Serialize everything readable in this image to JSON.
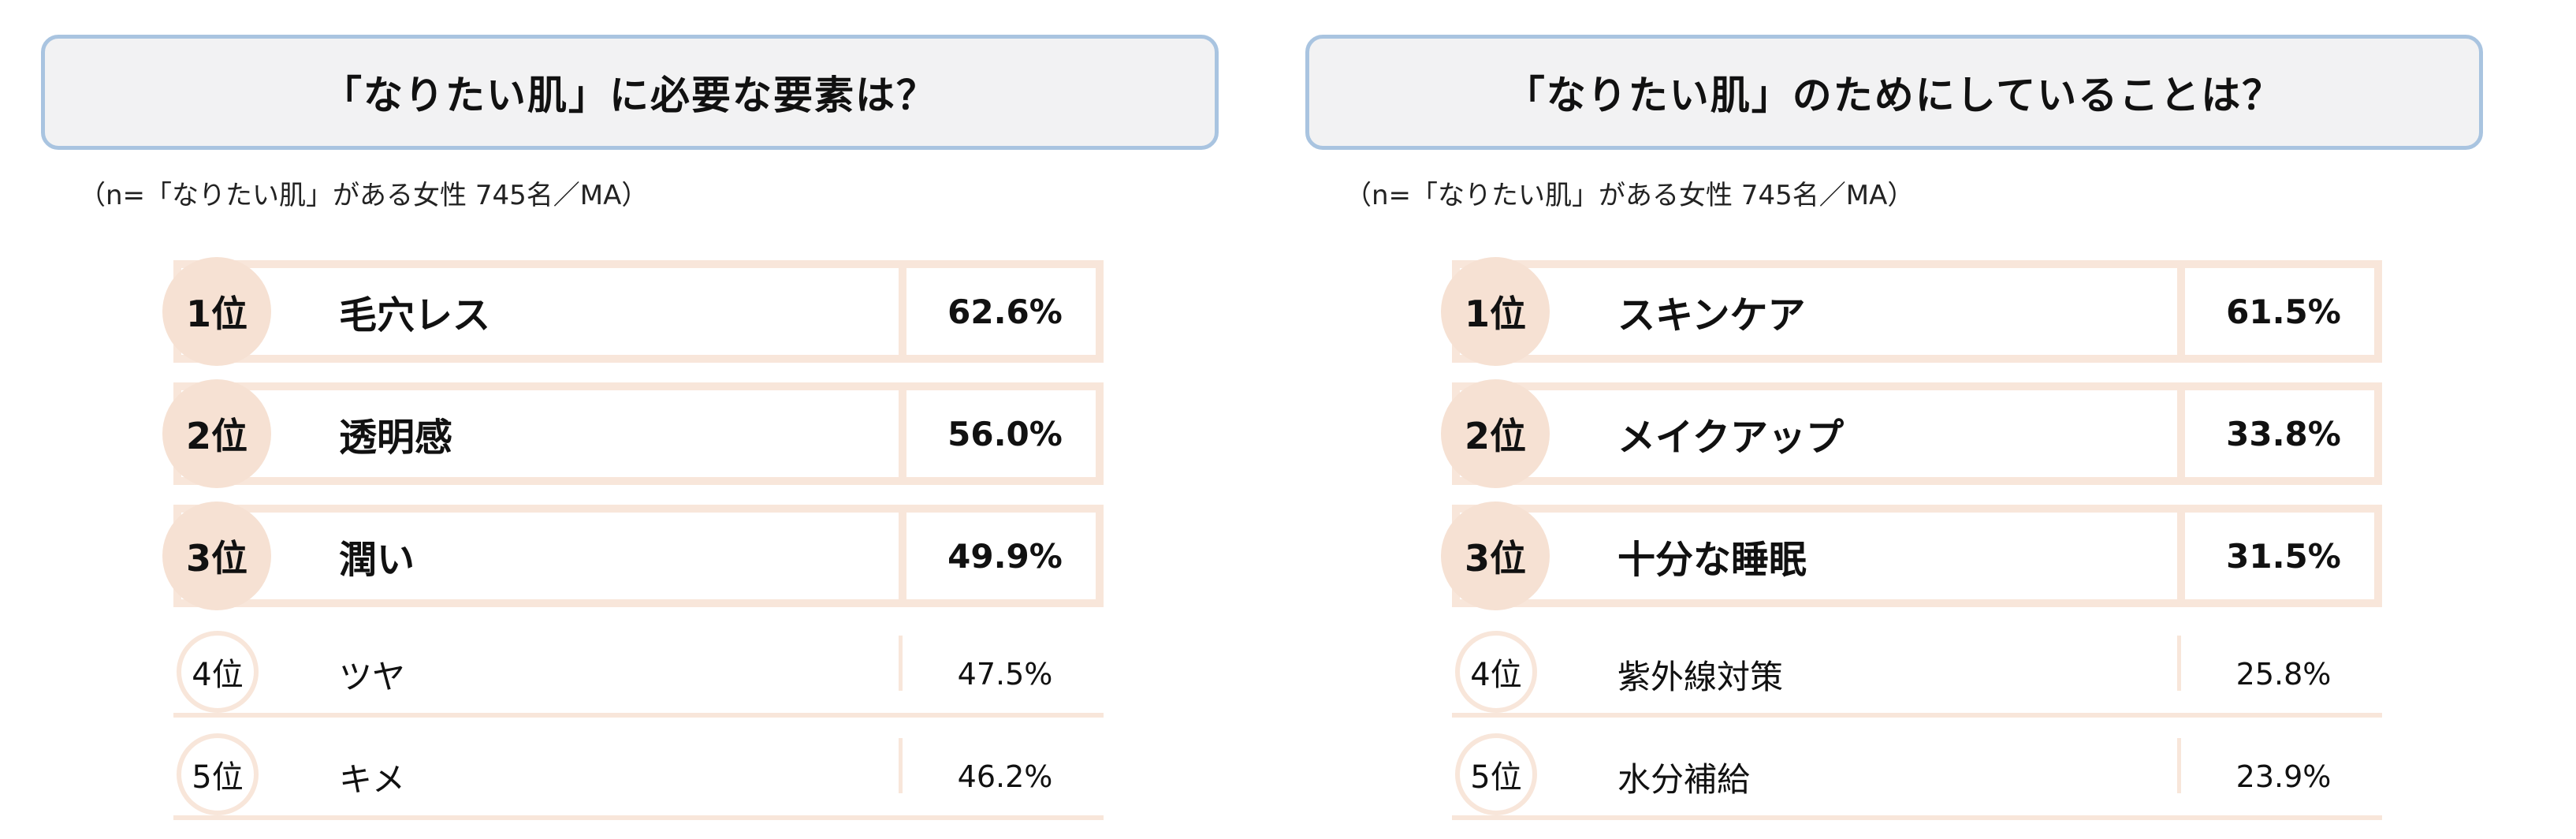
{
  "panels": [
    {
      "title": "「なりたい肌」に必要な要素は？",
      "note": "（n=「なりたい肌」がある女性 745名／MA）"
    },
    {
      "title": "「なりたい肌」のためにしていることは？",
      "note": "（n=「なりたい肌」がある女性 745名／MA）"
    }
  ],
  "chart_data": [
    {
      "type": "table",
      "title": "「なりたい肌」に必要な要素は？",
      "note": "（n=「なりたい肌」がある女性 745名／MA）",
      "rows": [
        {
          "rank": "1位",
          "label": "毛穴レス",
          "value_text": "62.6%",
          "value": 62.6
        },
        {
          "rank": "2位",
          "label": "透明感",
          "value_text": "56.0%",
          "value": 56.0
        },
        {
          "rank": "3位",
          "label": "潤い",
          "value_text": "49.9%",
          "value": 49.9
        },
        {
          "rank": "4位",
          "label": "ツヤ",
          "value_text": "47.5%",
          "value": 47.5
        },
        {
          "rank": "5位",
          "label": "キメ",
          "value_text": "46.2%",
          "value": 46.2
        }
      ]
    },
    {
      "type": "table",
      "title": "「なりたい肌」のためにしていることは？",
      "note": "（n=「なりたい肌」がある女性 745名／MA）",
      "rows": [
        {
          "rank": "1位",
          "label": "スキンケア",
          "value_text": "61.5%",
          "value": 61.5
        },
        {
          "rank": "2位",
          "label": "メイクアップ",
          "value_text": "33.8%",
          "value": 33.8
        },
        {
          "rank": "3位",
          "label": "十分な睡眠",
          "value_text": "31.5%",
          "value": 31.5
        },
        {
          "rank": "4位",
          "label": "紫外線対策",
          "value_text": "25.8%",
          "value": 25.8
        },
        {
          "rank": "5位",
          "label": "水分補給",
          "value_text": "23.9%",
          "value": 23.9
        }
      ]
    }
  ]
}
